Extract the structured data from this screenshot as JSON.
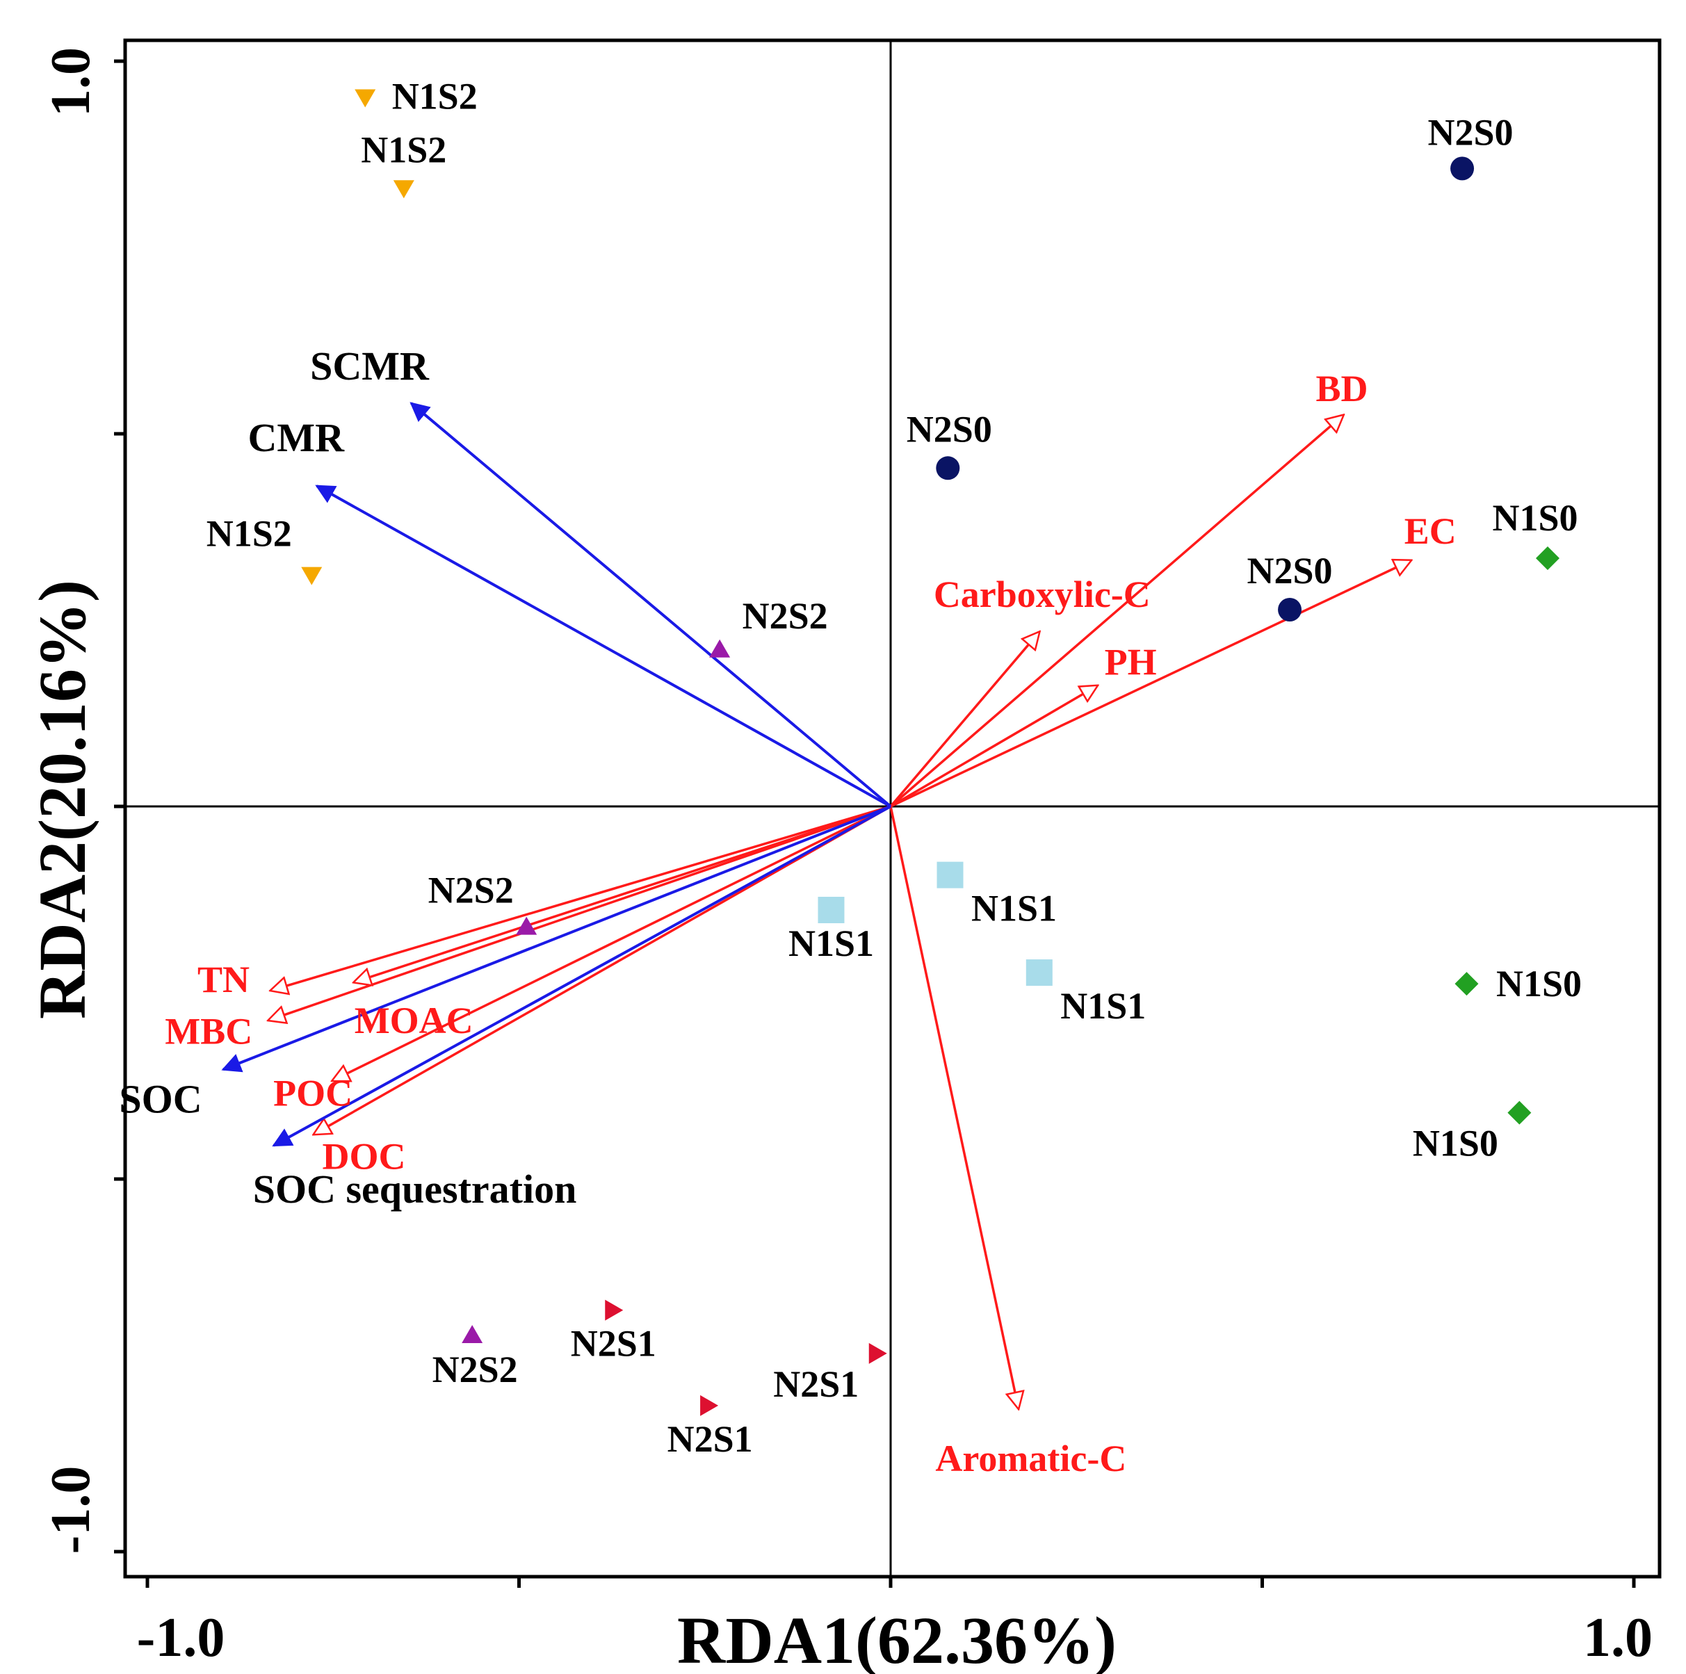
{
  "chart_data": {
    "type": "scatter",
    "subtype": "rda-biplot",
    "xlabel": "RDA1(62.36%)",
    "ylabel": "RDA2(20.16%)",
    "xlim": [
      -1.0,
      1.0
    ],
    "ylim": [
      -1.0,
      1.0
    ],
    "xticks": [
      -1.0,
      -0.5,
      0.0,
      0.5,
      1.0
    ],
    "yticks": [
      -1.0,
      -0.5,
      0.0,
      0.5,
      1.0
    ],
    "x_tick_labels": [
      "-1.0",
      "1.0"
    ],
    "y_tick_labels": [
      "1.0",
      "-1.0"
    ],
    "reference_lines": {
      "x": 0,
      "y": 0
    },
    "colors": {
      "N1S2": "#f5a800",
      "N2S0": "#0a1464",
      "N1S0": "#22a022",
      "N2S2": "#9a1aa8",
      "N1S1": "#a8dcea",
      "N2S1": "#dd1030",
      "response_arrow": "#1a1ae6",
      "explanatory_arrow": "#ff1a1a",
      "explanatory_label": "#ff1a1a",
      "response_label": "#000000",
      "sample_label": "#000000"
    },
    "samples": [
      {
        "group": "N1S2",
        "shape": "triangle-down",
        "label": "N1S2",
        "x": -0.707,
        "y": 0.951
      },
      {
        "group": "N1S2",
        "shape": "triangle-down",
        "label": "N1S2",
        "x": -0.655,
        "y": 0.829
      },
      {
        "group": "N1S2",
        "shape": "triangle-down",
        "label": "N1S2",
        "x": -0.779,
        "y": 0.31
      },
      {
        "group": "N2S0",
        "shape": "circle",
        "label": "N2S0",
        "x": 0.769,
        "y": 0.856
      },
      {
        "group": "N2S0",
        "shape": "circle",
        "label": "N2S0",
        "x": 0.077,
        "y": 0.454
      },
      {
        "group": "N2S0",
        "shape": "circle",
        "label": "N2S0",
        "x": 0.537,
        "y": 0.264
      },
      {
        "group": "N1S0",
        "shape": "diamond",
        "label": "N1S0",
        "x": 0.884,
        "y": 0.333
      },
      {
        "group": "N1S0",
        "shape": "diamond",
        "label": "N1S0",
        "x": 0.775,
        "y": -0.238
      },
      {
        "group": "N1S0",
        "shape": "diamond",
        "label": "N1S0",
        "x": 0.846,
        "y": -0.411
      },
      {
        "group": "N2S2",
        "shape": "triangle-up",
        "label": "N2S2",
        "x": -0.23,
        "y": 0.211
      },
      {
        "group": "N2S2",
        "shape": "triangle-up",
        "label": "N2S2",
        "x": -0.49,
        "y": -0.161
      },
      {
        "group": "N2S2",
        "shape": "triangle-up",
        "label": "N2S2",
        "x": -0.563,
        "y": -0.709
      },
      {
        "group": "N1S1",
        "shape": "square",
        "label": "N1S1",
        "x": 0.08,
        "y": -0.092
      },
      {
        "group": "N1S1",
        "shape": "square",
        "label": "N1S1",
        "x": -0.08,
        "y": -0.139
      },
      {
        "group": "N1S1",
        "shape": "square",
        "label": "N1S1",
        "x": 0.2,
        "y": -0.223
      },
      {
        "group": "N2S1",
        "shape": "triangle-right",
        "label": "N2S1",
        "x": -0.373,
        "y": -0.676
      },
      {
        "group": "N2S1",
        "shape": "triangle-right",
        "label": "N2S1",
        "x": -0.018,
        "y": -0.734
      },
      {
        "group": "N2S1",
        "shape": "triangle-right",
        "label": "N2S1",
        "x": -0.245,
        "y": -0.804
      }
    ],
    "response_vectors": [
      {
        "label": "SCMR",
        "x": -0.645,
        "y": 0.541
      },
      {
        "label": "CMR",
        "x": -0.772,
        "y": 0.43
      },
      {
        "label": "SOC",
        "x": -0.898,
        "y": -0.353
      },
      {
        "label": "SOC sequestration",
        "x": -0.83,
        "y": -0.455
      }
    ],
    "explanatory_vectors": [
      {
        "label": "BD",
        "x": 0.609,
        "y": 0.525
      },
      {
        "label": "EC",
        "x": 0.7,
        "y": 0.33
      },
      {
        "label": "Carboxylic-C",
        "x": 0.2,
        "y": 0.234
      },
      {
        "label": "PH",
        "x": 0.278,
        "y": 0.162
      },
      {
        "label": "Aromatic-C",
        "x": 0.172,
        "y": -0.808
      },
      {
        "label": "TN",
        "x": -0.834,
        "y": -0.247
      },
      {
        "label": "MBC",
        "x": -0.837,
        "y": -0.287
      },
      {
        "label": "MOAC",
        "x": -0.722,
        "y": -0.236
      },
      {
        "label": "POC",
        "x": -0.751,
        "y": -0.368
      },
      {
        "label": "DOC",
        "x": -0.776,
        "y": -0.44
      }
    ]
  }
}
